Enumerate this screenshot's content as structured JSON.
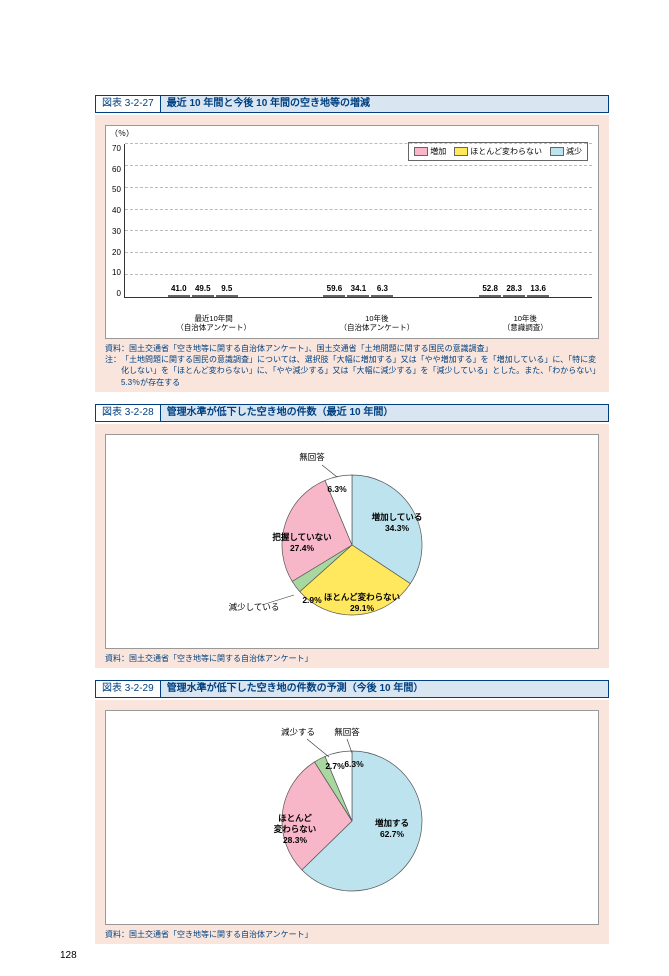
{
  "page_number": "128",
  "fig1": {
    "num": "図表 3-2-27",
    "title": "最近 10 年間と今後 10 年間の空き地等の増減",
    "y_unit": "（％）",
    "y_max": 70,
    "y_ticks": [
      "0",
      "10",
      "20",
      "30",
      "40",
      "50",
      "60",
      "70"
    ],
    "legend": [
      {
        "label": "増加",
        "color": "#f7b7c9"
      },
      {
        "label": "ほとんど変わらない",
        "color": "#ffe75e"
      },
      {
        "label": "減少",
        "color": "#bde4ee"
      }
    ],
    "groups": [
      {
        "label_line1": "最近10年間",
        "label_line2": "（自治体アンケート）",
        "bars": [
          {
            "v": 41.0,
            "c": "#f7b7c9"
          },
          {
            "v": 49.5,
            "c": "#ffe75e"
          },
          {
            "v": 9.5,
            "c": "#bde4ee"
          }
        ]
      },
      {
        "label_line1": "10年後",
        "label_line2": "（自治体アンケート）",
        "bars": [
          {
            "v": 59.6,
            "c": "#f7b7c9"
          },
          {
            "v": 34.1,
            "c": "#ffe75e"
          },
          {
            "v": 6.3,
            "c": "#bde4ee"
          }
        ]
      },
      {
        "label_line1": "10年後",
        "label_line2": "（意識調査）",
        "bars": [
          {
            "v": 52.8,
            "c": "#f7b7c9"
          },
          {
            "v": 28.3,
            "c": "#ffe75e"
          },
          {
            "v": 13.6,
            "c": "#bde4ee"
          }
        ]
      }
    ],
    "source_label": "資料：",
    "source": "国土交通省「空き地等に関する自治体アンケート」、国土交通省「土地問題に関する国民の意識調査」",
    "note_label": "注：",
    "note": "「土地問題に関する国民の意識調査」については、選択肢「大幅に増加する」又は「やや増加する」を「増加している」に、「特に変化しない」を「ほとんど変わらない」に、「やや減少する」又は「大幅に減少する」を「減少している」とした。また、「わからない」5.3％が存在する"
  },
  "fig2": {
    "num": "図表 3-2-28",
    "title": "管理水準が低下した空き地の件数（最近 10 年間）",
    "slices": [
      {
        "label": "増加している",
        "pct": 34.3,
        "color": "#bde4ee"
      },
      {
        "label": "ほとんど変わらない",
        "pct": 29.1,
        "color": "#ffe75e"
      },
      {
        "label": "減少している",
        "pct": 2.9,
        "color": "#a8d8a0"
      },
      {
        "label": "把握していない",
        "pct": 27.4,
        "color": "#f7b7c9"
      },
      {
        "label": "無回答",
        "pct": 6.3,
        "color": "#ffffff"
      }
    ],
    "source_label": "資料：",
    "source": "国土交通省「空き地等に関する自治体アンケート」"
  },
  "fig3": {
    "num": "図表 3-2-29",
    "title": "管理水準が低下した空き地の件数の予測（今後 10 年間）",
    "slices": [
      {
        "label": "増加する",
        "pct": 62.7,
        "color": "#bde4ee"
      },
      {
        "label": "ほとんど\\n変わらない",
        "pct": 28.3,
        "color": "#f7b7c9"
      },
      {
        "label": "減少する",
        "pct": 2.7,
        "color": "#a8d8a0"
      },
      {
        "label": "無回答",
        "pct": 6.3,
        "color": "#ffffff"
      }
    ],
    "source_label": "資料：",
    "source": "国土交通省「空き地等に関する自治体アンケート」"
  }
}
